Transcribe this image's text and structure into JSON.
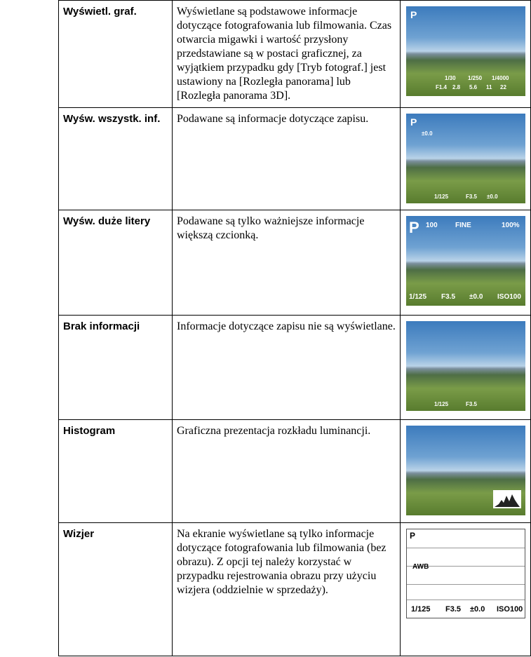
{
  "rows": [
    {
      "name": "Wyświetl. graf.",
      "description": "Wyświetlane są podstawowe informacje dotyczące fotografowania lub filmowania. Czas otwarcia migawki i wartość przysłony przedstawiane są w postaci graficznej, za wyjątkiem przypadku gdy [Tryb fotograf.] jest ustawiony na [Rozległa panorama] lub [Rozległa panorama 3D].",
      "overlay": [
        "P",
        "1/30",
        "1/250",
        "1/4000",
        "F1.4",
        "2.8",
        "5.6",
        "11",
        "22"
      ]
    },
    {
      "name": "Wyśw. wszystk. inf.",
      "description": "Podawane są informacje dotyczące zapisu.",
      "overlay": [
        "P",
        "±0.0",
        "1/125",
        "F3.5",
        "±0.0"
      ]
    },
    {
      "name": "Wyśw. duże litery",
      "description": "Podawane są tylko ważniejsze informacje większą czcionką.",
      "overlay": [
        "P",
        "100",
        "FINE",
        "100%",
        "1/125",
        "F3.5",
        "±0.0",
        "ISO100"
      ]
    },
    {
      "name": "Brak informacji",
      "description": "Informacje dotyczące zapisu nie są wyświetlane.",
      "overlay": [
        "1/125",
        "F3.5"
      ]
    },
    {
      "name": "Histogram",
      "description": "Graficzna prezentacja rozkładu luminancji.",
      "overlay": []
    },
    {
      "name": "Wizjer",
      "description": "Na ekranie wyświetlane są tylko informacje dotyczące fotografowania lub filmowania (bez obrazu). Z opcji tej należy korzystać w przypadku rejestrowania obrazu przy użyciu wizjera (oddzielnie w sprzedaży).",
      "overlay": [
        "P",
        "AWB",
        "1/125",
        "F3.5",
        "±0.0",
        "ISO100"
      ]
    }
  ]
}
